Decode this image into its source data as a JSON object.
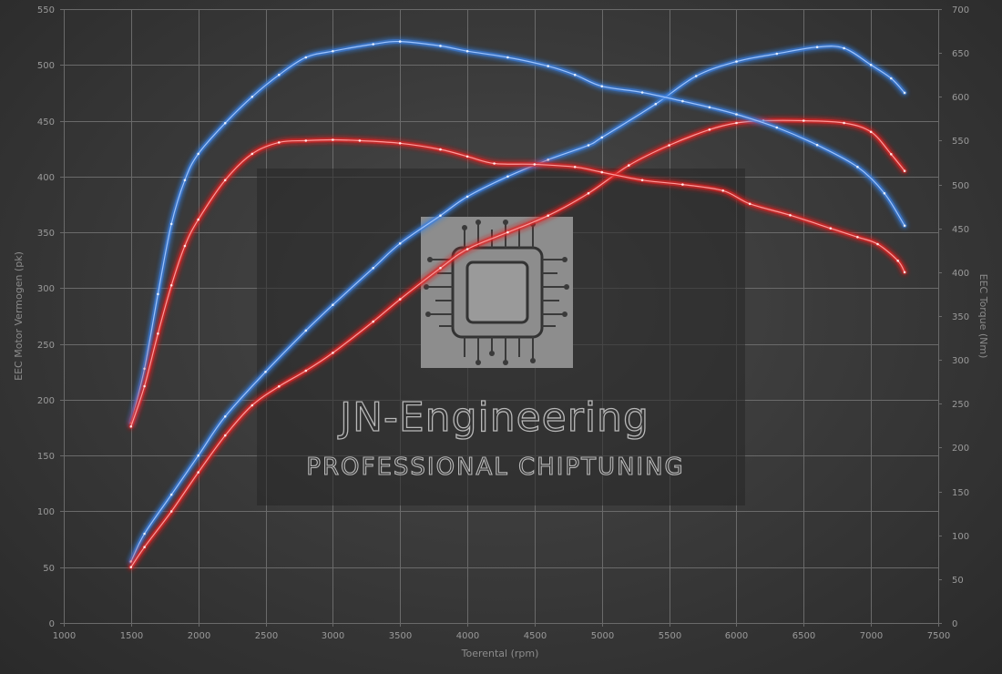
{
  "chart_data": {
    "type": "line",
    "xlabel": "Toerental (rpm)",
    "ylabel_left": "EEC Motor Vermogen (pk)",
    "ylabel_right": "EEC Torque (Nm)",
    "xlim": [
      1000,
      7500
    ],
    "ylim_left": [
      0,
      550
    ],
    "ylim_right": [
      0,
      700
    ],
    "x_ticks": [
      1000,
      1500,
      2000,
      2500,
      3000,
      3500,
      4000,
      4500,
      5000,
      5500,
      6000,
      6500,
      7000,
      7500
    ],
    "y_left_ticks": [
      0,
      50,
      100,
      150,
      200,
      250,
      300,
      350,
      400,
      450,
      500,
      550
    ],
    "y_right_ticks": [
      0,
      50,
      100,
      150,
      200,
      250,
      300,
      350,
      400,
      450,
      500,
      550,
      600,
      650,
      700
    ],
    "grid": true,
    "colors": {
      "tuned": "#3a7fe0",
      "stock": "#e02525"
    },
    "series": [
      {
        "axis": "left",
        "color": "#3a7fe0",
        "x": [
          1500,
          1600,
          1800,
          2000,
          2200,
          2500,
          2800,
          3000,
          3300,
          3500,
          3800,
          4000,
          4300,
          4600,
          4900,
          5000,
          5400,
          5700,
          6000,
          6300,
          6600,
          6800,
          7000,
          7150,
          7250
        ],
        "values": [
          55,
          80,
          115,
          150,
          185,
          225,
          262,
          285,
          318,
          340,
          365,
          382,
          400,
          415,
          428,
          435,
          465,
          490,
          503,
          510,
          516,
          515,
          500,
          488,
          475
        ]
      },
      {
        "axis": "left",
        "color": "#e02525",
        "x": [
          1500,
          1600,
          1800,
          2000,
          2200,
          2400,
          2600,
          2800,
          3000,
          3300,
          3500,
          3800,
          4000,
          4300,
          4600,
          4900,
          5200,
          5500,
          5800,
          6000,
          6200,
          6500,
          6800,
          7000,
          7150,
          7250
        ],
        "values": [
          50,
          68,
          100,
          135,
          168,
          195,
          212,
          226,
          242,
          270,
          290,
          318,
          335,
          350,
          365,
          385,
          410,
          428,
          442,
          448,
          450,
          450,
          448,
          440,
          420,
          405
        ]
      },
      {
        "axis": "right",
        "color": "#3a7fe0",
        "x": [
          1500,
          1600,
          1700,
          1800,
          1900,
          2000,
          2200,
          2400,
          2600,
          2800,
          3000,
          3300,
          3500,
          3800,
          4000,
          4300,
          4600,
          4800,
          5000,
          5300,
          5600,
          5800,
          6000,
          6300,
          6600,
          6900,
          7100,
          7250
        ],
        "values": [
          228,
          290,
          375,
          455,
          505,
          535,
          570,
          600,
          625,
          645,
          652,
          660,
          663,
          658,
          652,
          645,
          635,
          625,
          612,
          605,
          595,
          588,
          580,
          565,
          545,
          520,
          490,
          453
        ]
      },
      {
        "axis": "right",
        "color": "#e02525",
        "x": [
          1500,
          1600,
          1700,
          1800,
          1900,
          2000,
          2200,
          2400,
          2600,
          2800,
          3000,
          3200,
          3500,
          3800,
          4000,
          4200,
          4500,
          4800,
          5000,
          5300,
          5600,
          5900,
          6100,
          6400,
          6700,
          6900,
          7050,
          7200,
          7250
        ],
        "values": [
          224,
          270,
          330,
          385,
          430,
          460,
          505,
          535,
          548,
          550,
          551,
          550,
          547,
          540,
          532,
          524,
          523,
          520,
          514,
          505,
          500,
          493,
          478,
          465,
          450,
          440,
          432,
          413,
          400
        ]
      }
    ]
  },
  "watermark": {
    "title": "JN-Engineering",
    "subtitle": "PROFESSIONAL CHIPTUNING",
    "icon": "circuit-chip-icon"
  }
}
